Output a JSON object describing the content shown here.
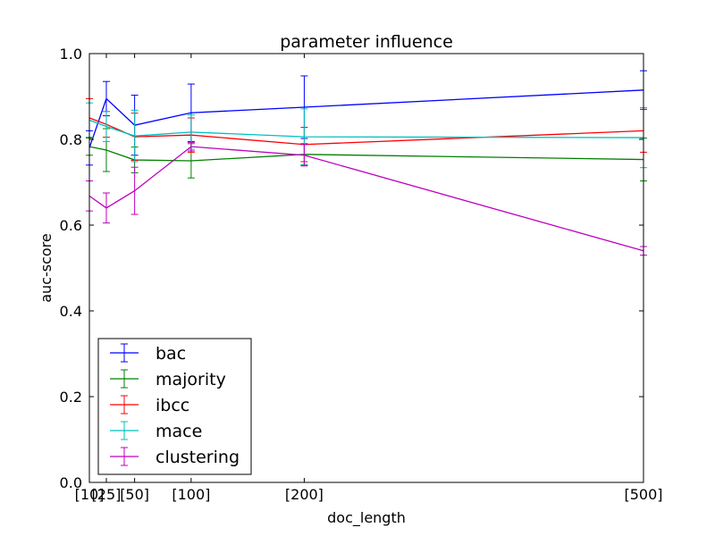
{
  "chart_data": {
    "type": "line",
    "title": "parameter influence",
    "xlabel": "doc_length",
    "ylabel": "auc-score",
    "x": [
      10,
      25,
      50,
      100,
      200,
      500
    ],
    "x_tick_labels": [
      "[10]",
      "[25]",
      "[50]",
      "[100]",
      "[200]",
      "[500]"
    ],
    "xlim": [
      10,
      500
    ],
    "ylim": [
      0.0,
      1.0
    ],
    "y_ticks": [
      "0.0",
      "0.2",
      "0.4",
      "0.6",
      "0.8",
      "1.0"
    ],
    "y_tick_values": [
      0.0,
      0.2,
      0.4,
      0.6,
      0.8,
      1.0
    ],
    "grid": false,
    "legend_position": "lower-left",
    "series": [
      {
        "name": "bac",
        "color": "#0000ff",
        "values": [
          0.78,
          0.895,
          0.833,
          0.862,
          0.875,
          0.915
        ],
        "errors": [
          0.04,
          0.04,
          0.07,
          0.067,
          0.073,
          0.045
        ]
      },
      {
        "name": "majority",
        "color": "#008000",
        "values": [
          0.783,
          0.775,
          0.752,
          0.75,
          0.765,
          0.753
        ],
        "errors": [
          0.02,
          0.05,
          0.03,
          0.04,
          0.025,
          0.05
        ]
      },
      {
        "name": "ibcc",
        "color": "#ff0000",
        "values": [
          0.85,
          0.835,
          0.806,
          0.81,
          0.788,
          0.82
        ],
        "errors": [
          0.045,
          0.03,
          0.055,
          0.04,
          0.04,
          0.05
        ]
      },
      {
        "name": "mace",
        "color": "#00bfbf",
        "values": [
          0.845,
          0.83,
          0.808,
          0.817,
          0.806,
          0.804
        ],
        "errors": [
          0.04,
          0.035,
          0.06,
          0.04,
          0.065,
          0.07
        ]
      },
      {
        "name": "clustering",
        "color": "#bf00bf",
        "values": [
          0.668,
          0.64,
          0.68,
          0.783,
          0.763,
          0.54
        ],
        "errors": [
          0.035,
          0.035,
          0.055,
          0.01,
          0.025,
          0.01
        ]
      }
    ]
  }
}
